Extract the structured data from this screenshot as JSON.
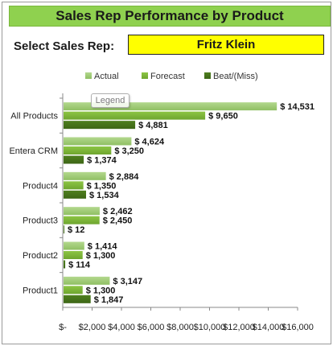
{
  "header": {
    "title": "Sales Rep Performance by Product"
  },
  "selector": {
    "label": "Select Sales Rep:",
    "value": "Fritz Klein"
  },
  "tooltip": {
    "text": "Legend"
  },
  "colors": {
    "actual": "#b3d88e",
    "forecast": "#8cc544",
    "beat": "#4f7f1f",
    "title_bg": "#8fd14f",
    "select_bg": "#ffff00"
  },
  "chart_data": {
    "type": "bar",
    "orientation": "horizontal",
    "categories": [
      "All Products",
      "Entera CRM",
      "Product4",
      "Product3",
      "Product2",
      "Product1"
    ],
    "series": [
      {
        "name": "Actual",
        "values": [
          14531,
          4624,
          2884,
          2462,
          1414,
          3147
        ],
        "labels": [
          "$ 14,531",
          "$ 4,624",
          "$ 2,884",
          "$ 2,462",
          "$ 1,414",
          "$ 3,147"
        ]
      },
      {
        "name": "Forecast",
        "values": [
          9650,
          3250,
          1350,
          2450,
          1300,
          1300
        ],
        "labels": [
          "$ 9,650",
          "$ 3,250",
          "$ 1,350",
          "$ 2,450",
          "$ 1,300",
          "$ 1,300"
        ]
      },
      {
        "name": "Beat/(Miss)",
        "values": [
          4881,
          1374,
          1534,
          12,
          114,
          1847
        ],
        "labels": [
          "$ 4,881",
          "$ 1,374",
          "$ 1,534",
          "$ 12",
          "$ 114",
          "$ 1,847"
        ]
      }
    ],
    "xlim": [
      0,
      16000
    ],
    "xticks": [
      0,
      2000,
      4000,
      6000,
      8000,
      10000,
      12000,
      14000,
      16000
    ],
    "xtick_labels": [
      "$-",
      "$2,000",
      "$4,000",
      "$6,000",
      "$8,000",
      "$10,000",
      "$12,000",
      "$14,000",
      "$16,000"
    ],
    "legend_position": "top",
    "grid": false
  }
}
